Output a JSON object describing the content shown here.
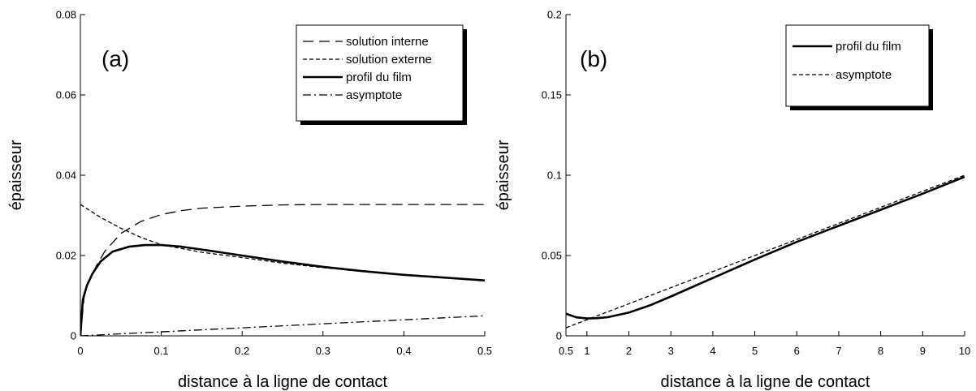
{
  "chart_data": [
    {
      "panel_label": "(a)",
      "type": "line",
      "xlabel": "distance à la ligne de contact",
      "ylabel": "épaisseur",
      "xlim": [
        0,
        0.5
      ],
      "ylim": [
        0,
        0.08
      ],
      "xticks": [
        "0",
        "0.1",
        "0.2",
        "0.3",
        "0.4",
        "0.5"
      ],
      "yticks": [
        "0",
        "0.02",
        "0.04",
        "0.06",
        "0.08"
      ],
      "legend_position": "top-right",
      "series": [
        {
          "name": "solution interne",
          "style": "dashed",
          "x": [
            0,
            0.005,
            0.01,
            0.02,
            0.03,
            0.05,
            0.075,
            0.1,
            0.125,
            0.15,
            0.2,
            0.25,
            0.3,
            0.4,
            0.5
          ],
          "y": [
            0,
            0.0105,
            0.0135,
            0.0175,
            0.021,
            0.0255,
            0.0285,
            0.0302,
            0.0312,
            0.0318,
            0.0323,
            0.0326,
            0.0327,
            0.0327,
            0.0327
          ]
        },
        {
          "name": "solution externe",
          "style": "dotted",
          "x": [
            0,
            0.025,
            0.05,
            0.075,
            0.1,
            0.15,
            0.2,
            0.25,
            0.3,
            0.35,
            0.4,
            0.45,
            0.5
          ],
          "y": [
            0.0327,
            0.0295,
            0.0268,
            0.0245,
            0.0227,
            0.0208,
            0.0195,
            0.0181,
            0.017,
            0.016,
            0.0152,
            0.0145,
            0.0138
          ]
        },
        {
          "name": "profil du film",
          "style": "solid",
          "x": [
            0,
            0.003,
            0.008,
            0.015,
            0.025,
            0.04,
            0.06,
            0.08,
            0.1,
            0.125,
            0.15,
            0.2,
            0.25,
            0.3,
            0.35,
            0.4,
            0.45,
            0.5
          ],
          "y": [
            0,
            0.009,
            0.0125,
            0.0155,
            0.0185,
            0.021,
            0.0222,
            0.0226,
            0.0226,
            0.0222,
            0.0215,
            0.02,
            0.0185,
            0.0172,
            0.0161,
            0.0152,
            0.0145,
            0.0138
          ]
        },
        {
          "name": "asymptote",
          "style": "dashdot",
          "x": [
            0,
            0.5
          ],
          "y": [
            0,
            0.005
          ]
        }
      ]
    },
    {
      "panel_label": "(b)",
      "type": "line",
      "xlabel": "distance à la ligne de contact",
      "ylabel": "épaisseur",
      "xlim": [
        0.5,
        10
      ],
      "ylim": [
        0,
        0.2
      ],
      "xticks": [
        "0.5",
        "1",
        "2",
        "3",
        "4",
        "5",
        "6",
        "7",
        "8",
        "9",
        "10"
      ],
      "xtick_values": [
        0.5,
        1,
        2,
        3,
        4,
        5,
        6,
        7,
        8,
        9,
        10
      ],
      "yticks": [
        "0",
        "0.05",
        "0.1",
        "0.15",
        "0.2"
      ],
      "legend_position": "top-right",
      "series": [
        {
          "name": "profil du film",
          "style": "solid",
          "x": [
            0.5,
            0.75,
            1,
            1.25,
            1.5,
            2,
            2.5,
            3,
            4,
            5,
            6,
            7,
            8,
            9,
            10
          ],
          "y": [
            0.0138,
            0.0115,
            0.0108,
            0.011,
            0.0116,
            0.0145,
            0.019,
            0.0245,
            0.036,
            0.0475,
            0.0585,
            0.0685,
            0.0785,
            0.0885,
            0.099
          ]
        },
        {
          "name": "asymptote",
          "style": "dotted",
          "x": [
            0.5,
            10
          ],
          "y": [
            0.005,
            0.1
          ]
        }
      ]
    }
  ]
}
